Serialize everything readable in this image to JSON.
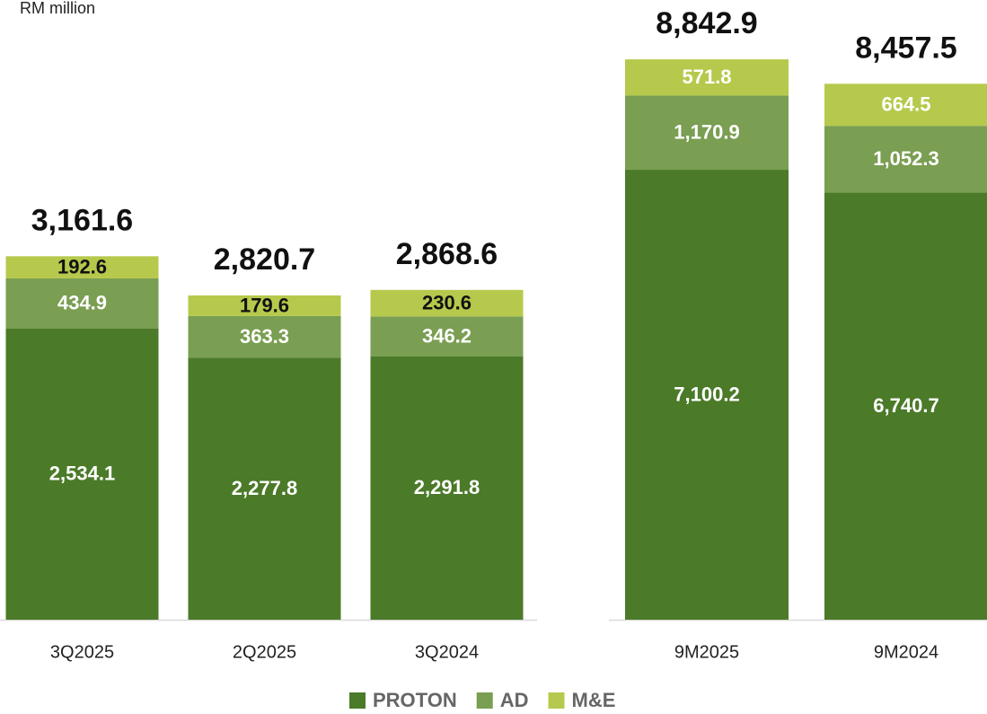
{
  "unit_label": "RM million",
  "chart_data": [
    {
      "type": "stacked_bar",
      "categories": [
        "3Q2025",
        "2Q2025",
        "3Q2024"
      ],
      "ylim": [
        0,
        5000
      ],
      "series": [
        {
          "name": "PROTON",
          "color": "#4b7a28",
          "values": [
            2534.1,
            2277.8,
            2291.8
          ],
          "value_labels": [
            "2,534.1",
            "2,277.8",
            "2,291.8"
          ]
        },
        {
          "name": "AD",
          "color": "#7a9e52",
          "values": [
            434.9,
            363.3,
            346.2
          ],
          "value_labels": [
            "434.9",
            "363.3",
            "346.2"
          ]
        },
        {
          "name": "M&E",
          "color": "#b6c94c",
          "values": [
            192.6,
            179.6,
            230.6
          ],
          "value_labels": [
            "192.6",
            "179.6",
            "230.6"
          ]
        }
      ],
      "totals": [
        3161.6,
        2820.7,
        2868.6
      ],
      "totals_labels": [
        "3,161.6",
        "2,820.7",
        "2,868.6"
      ]
    },
    {
      "type": "stacked_bar",
      "categories": [
        "9M2025",
        "9M2024"
      ],
      "ylim": [
        0,
        9000
      ],
      "series": [
        {
          "color": "#4b7a28",
          "values": [
            7100.2,
            6740.7
          ],
          "value_labels": [
            "7,100.2",
            "6,740.7"
          ]
        },
        {
          "color": "#7a9e52",
          "values": [
            1170.9,
            1052.3
          ],
          "value_labels": [
            "1,170.9",
            "1,052.3"
          ]
        },
        {
          "color": "#b6c94c",
          "values": [
            571.8,
            664.5
          ],
          "value_labels": [
            "571.8",
            "664.5"
          ]
        }
      ],
      "totals": [
        8842.9,
        8457.5
      ],
      "totals_labels": [
        "8,842.9",
        "8,457.5"
      ]
    }
  ]
}
